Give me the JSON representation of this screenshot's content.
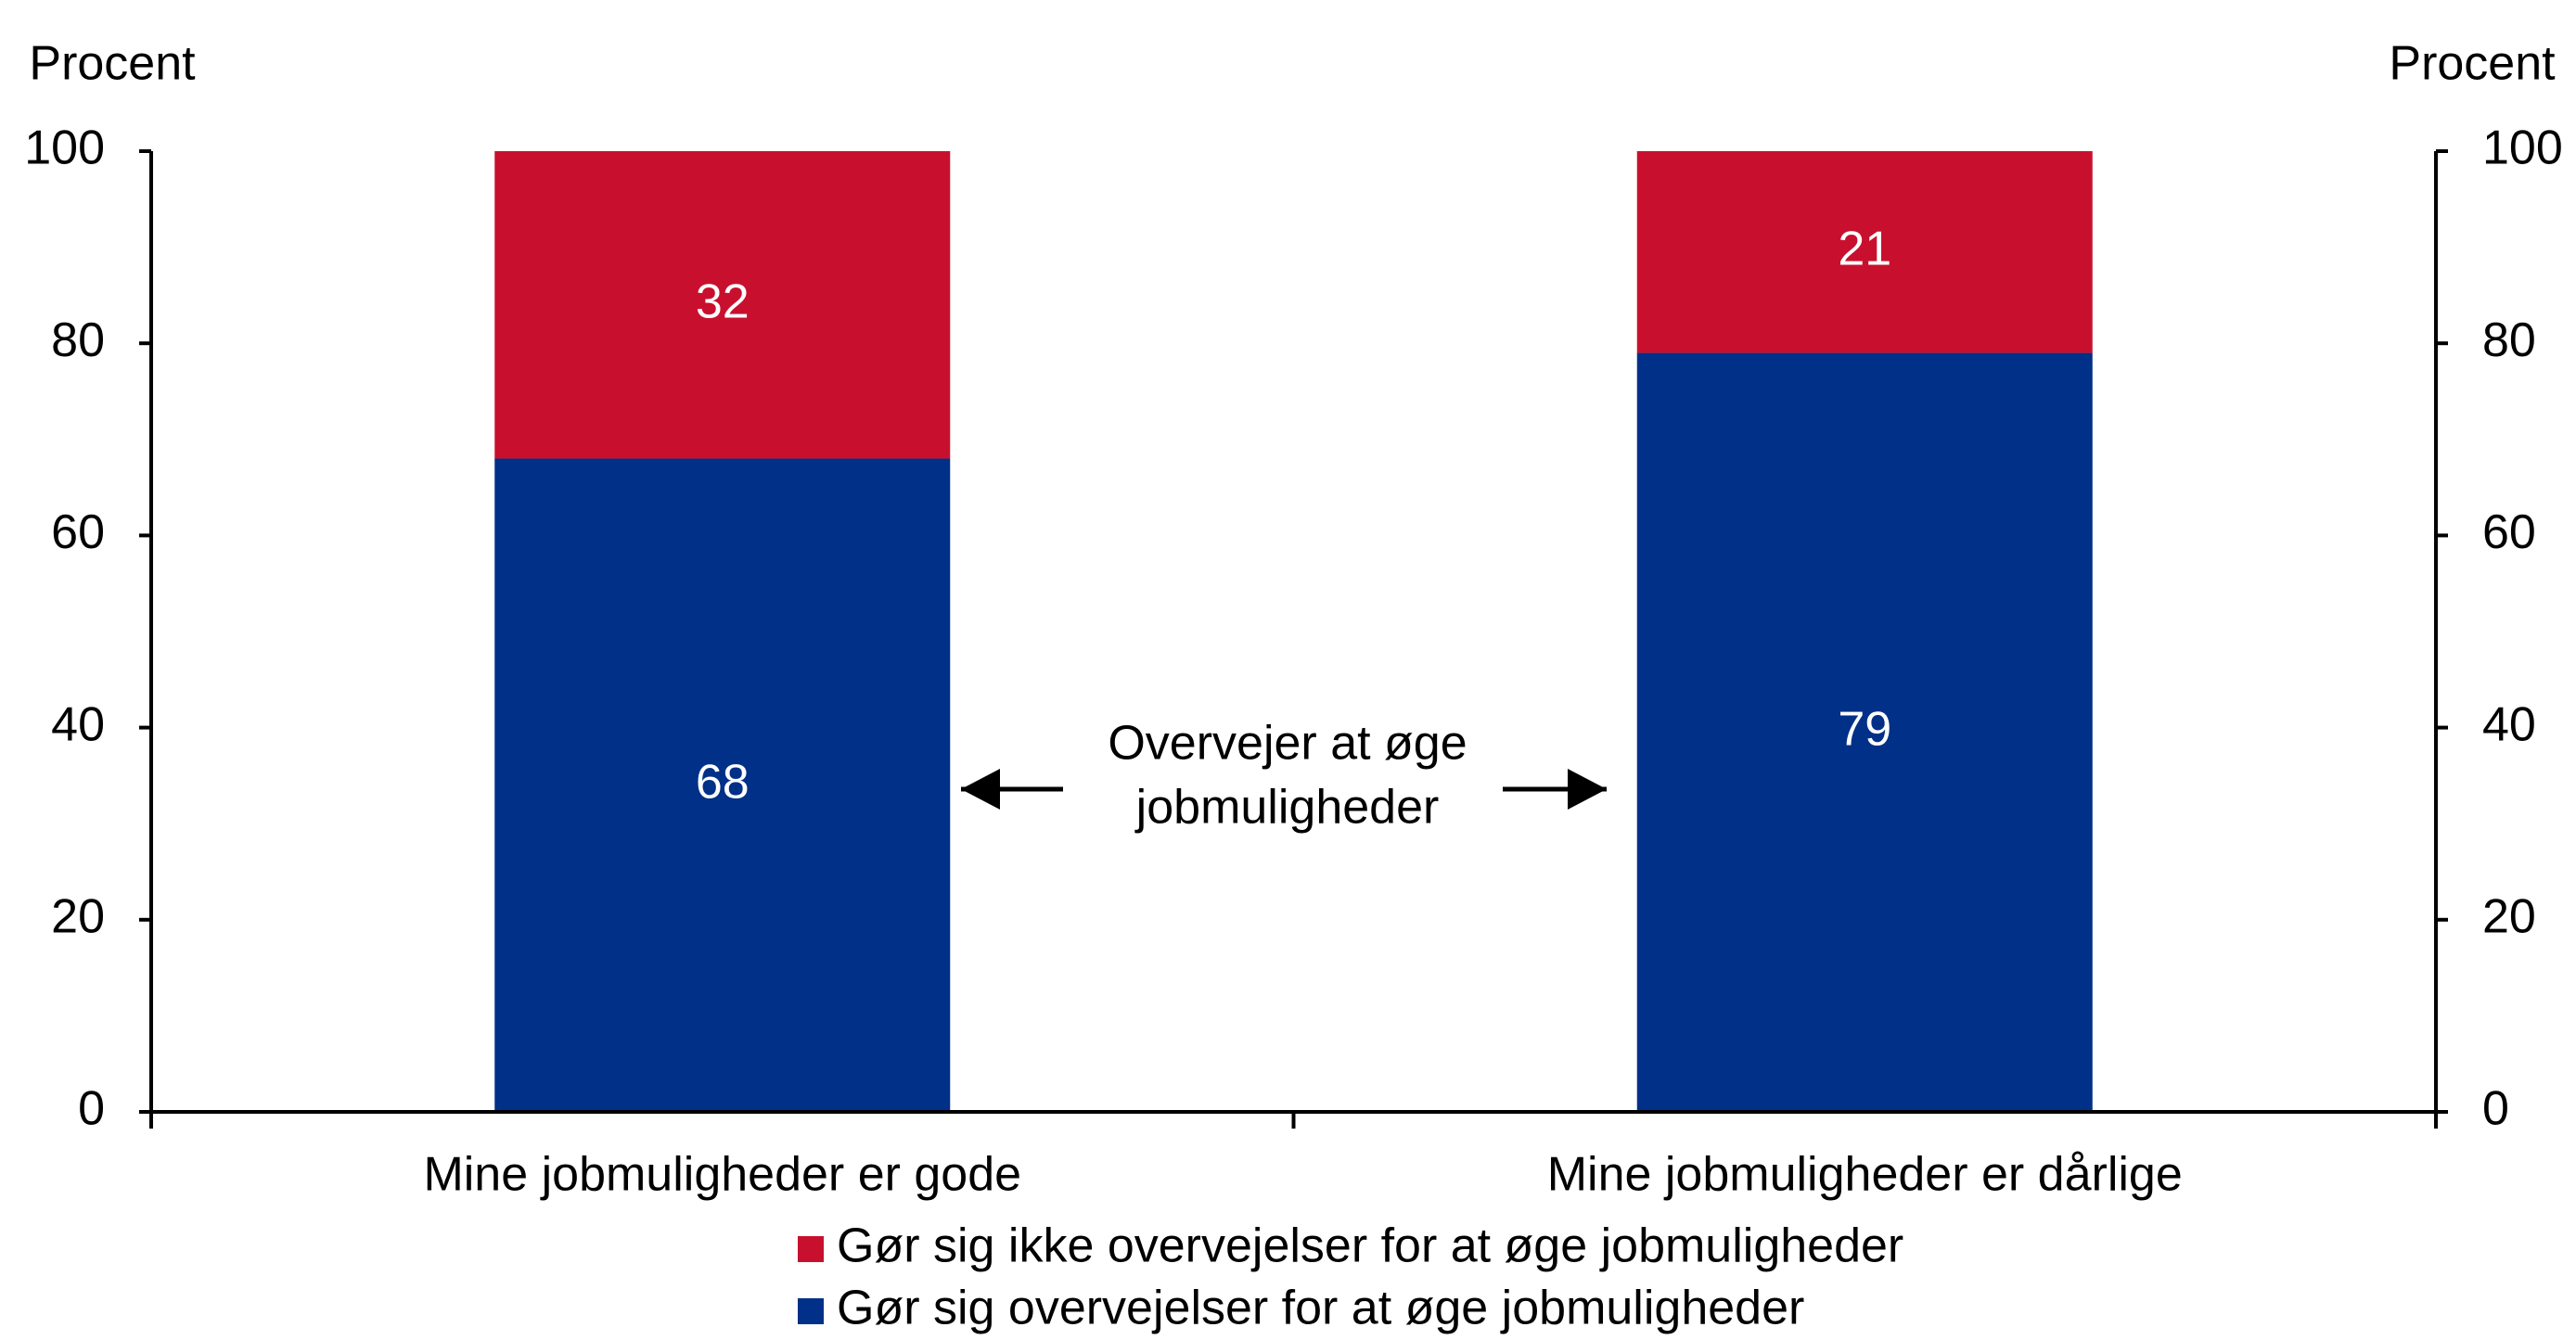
{
  "chart_data": {
    "type": "stacked_bar",
    "ylabel": "Procent",
    "y2label": "Procent",
    "categories": [
      "Mine jobmuligheder er gode",
      "Mine jobmuligheder er dårlige"
    ],
    "series": [
      {
        "name": "Gør sig overvejelser for at øge jobmuligheder",
        "color": "#003087",
        "values": [
          68,
          79
        ]
      },
      {
        "name": "Gør sig ikke overvejelser for at øge jobmuligheder",
        "color": "#c8102e",
        "values": [
          32,
          21
        ]
      }
    ],
    "ylim": [
      0,
      100
    ],
    "yticks": [
      0,
      20,
      40,
      60,
      80,
      100
    ],
    "y2lim": [
      0,
      100
    ],
    "y2ticks": [
      0,
      20,
      40,
      60,
      80,
      100
    ],
    "annotation": [
      "Overvejer at øge",
      "jobmuligheder"
    ]
  }
}
